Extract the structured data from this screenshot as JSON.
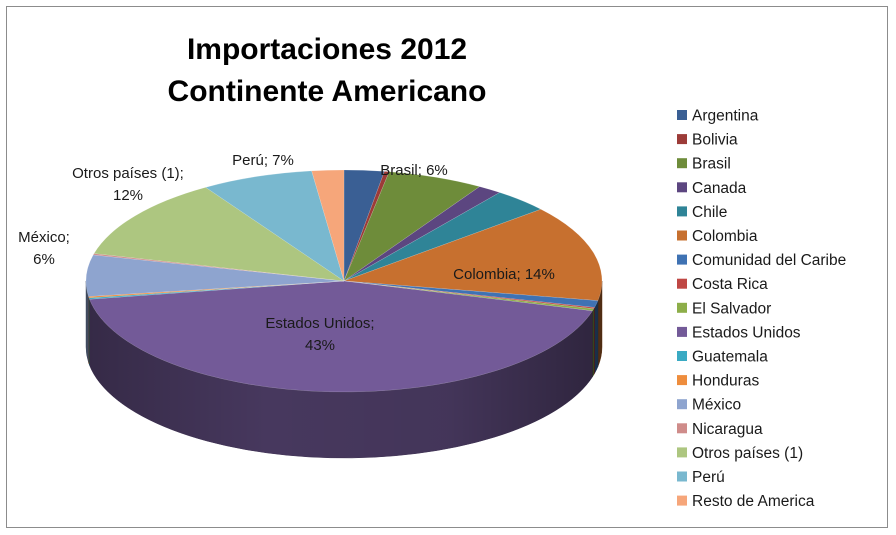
{
  "chart_data": {
    "type": "pie",
    "title_lines": [
      "Importaciones 2012",
      "Continente Americano"
    ],
    "legend_position": "right",
    "three_d": true,
    "slices": [
      {
        "name": "Argentina",
        "value": 2.5,
        "color": "#3A5F94"
      },
      {
        "name": "Bolivia",
        "value": 0.3,
        "color": "#9C3B38"
      },
      {
        "name": "Brasil",
        "value": 6,
        "color": "#6E8C3A",
        "label": "Brasil; 6%"
      },
      {
        "name": "Canada",
        "value": 1.5,
        "color": "#5C4680"
      },
      {
        "name": "Chile",
        "value": 3.5,
        "color": "#2F8497"
      },
      {
        "name": "Colombia",
        "value": 14,
        "color": "#C7702F",
        "label": "Colombia; 14%"
      },
      {
        "name": "Comunidad del Caribe",
        "value": 1,
        "color": "#3F72B3"
      },
      {
        "name": "Costa Rica",
        "value": 0.2,
        "color": "#BF4744"
      },
      {
        "name": "El Salvador",
        "value": 0.3,
        "color": "#8DAE49"
      },
      {
        "name": "Estados Unidos",
        "value": 43,
        "color": "#735A98",
        "label": "Estados Unidos;\n43%"
      },
      {
        "name": "Guatemala",
        "value": 0.2,
        "color": "#3AAAC3"
      },
      {
        "name": "Honduras",
        "value": 0.2,
        "color": "#EE8D3D"
      },
      {
        "name": "México",
        "value": 6,
        "color": "#8EA4CF",
        "label": "México;\n6%"
      },
      {
        "name": "Nicaragua",
        "value": 0.2,
        "color": "#CF8C8A"
      },
      {
        "name": "Otros países (1)",
        "value": 12,
        "color": "#ADC680",
        "label": "Otros países (1);\n12%"
      },
      {
        "name": "Perú",
        "value": 7,
        "color": "#79B8CF",
        "label": "Perú; 7%"
      },
      {
        "name": "Resto de America",
        "value": 2,
        "color": "#F6A67A"
      }
    ]
  }
}
